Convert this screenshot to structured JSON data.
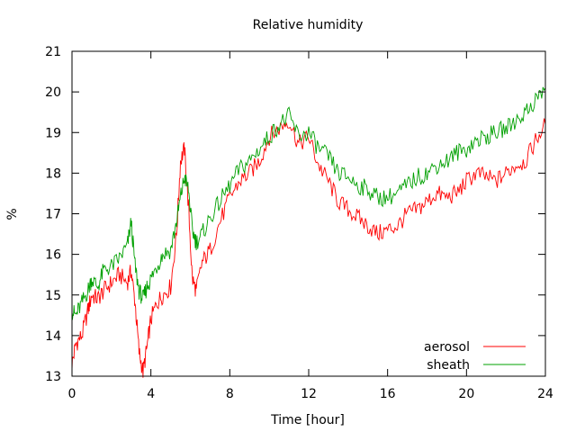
{
  "chart_data": {
    "type": "line",
    "title": "Relative humidity",
    "xlabel": "Time [hour]",
    "ylabel": "%",
    "xlim": [
      0,
      24
    ],
    "ylim": [
      13,
      21
    ],
    "xticks": [
      0,
      4,
      8,
      12,
      16,
      20,
      24
    ],
    "yticks": [
      13,
      14,
      15,
      16,
      17,
      18,
      19,
      20,
      21
    ],
    "grid": false,
    "legend": {
      "position": "bottom-right"
    },
    "series": [
      {
        "name": "aerosol",
        "color": "#ff0000",
        "x": [
          0.0,
          0.2,
          0.5,
          0.8,
          1.0,
          1.3,
          1.6,
          2.0,
          2.4,
          2.8,
          3.0,
          3.2,
          3.4,
          3.6,
          3.8,
          4.0,
          4.3,
          4.6,
          5.0,
          5.3,
          5.5,
          5.7,
          5.9,
          6.1,
          6.3,
          6.6,
          7.0,
          7.5,
          8.0,
          8.5,
          9.0,
          9.5,
          10.0,
          10.5,
          11.0,
          11.5,
          12.0,
          12.5,
          13.0,
          13.5,
          14.0,
          14.5,
          15.0,
          15.5,
          16.0,
          16.5,
          17.0,
          17.5,
          18.0,
          18.5,
          19.0,
          19.5,
          20.0,
          20.5,
          21.0,
          21.5,
          22.0,
          22.5,
          23.0,
          23.5,
          24.0
        ],
        "values": [
          13.3,
          13.8,
          14.0,
          14.6,
          15.0,
          14.9,
          15.1,
          15.3,
          15.5,
          15.3,
          15.6,
          14.8,
          13.6,
          13.1,
          13.7,
          14.4,
          14.8,
          15.0,
          15.2,
          16.5,
          18.3,
          18.6,
          17.2,
          15.4,
          15.1,
          15.8,
          16.1,
          16.8,
          17.4,
          17.8,
          18.0,
          18.3,
          18.9,
          19.1,
          19.3,
          18.7,
          18.9,
          18.2,
          17.8,
          17.3,
          17.1,
          16.9,
          16.7,
          16.5,
          16.6,
          16.7,
          17.0,
          17.1,
          17.3,
          17.5,
          17.4,
          17.5,
          17.8,
          18.0,
          17.9,
          17.8,
          18.0,
          18.2,
          18.3,
          18.8,
          19.2
        ]
      },
      {
        "name": "sheath",
        "color": "#00a000",
        "x": [
          0.0,
          0.2,
          0.5,
          0.8,
          1.0,
          1.3,
          1.6,
          2.0,
          2.4,
          2.8,
          3.0,
          3.2,
          3.4,
          3.6,
          3.8,
          4.0,
          4.3,
          4.6,
          5.0,
          5.3,
          5.5,
          5.7,
          5.9,
          6.1,
          6.3,
          6.6,
          7.0,
          7.5,
          8.0,
          8.5,
          9.0,
          9.5,
          10.0,
          10.5,
          11.0,
          11.5,
          12.0,
          12.5,
          13.0,
          13.5,
          14.0,
          14.5,
          15.0,
          15.5,
          16.0,
          16.5,
          17.0,
          17.5,
          18.0,
          18.5,
          19.0,
          19.5,
          20.0,
          20.5,
          21.0,
          21.5,
          22.0,
          22.5,
          23.0,
          23.5,
          24.0
        ],
        "values": [
          14.6,
          14.5,
          14.8,
          15.1,
          15.4,
          15.2,
          15.6,
          15.7,
          15.9,
          16.2,
          16.8,
          15.7,
          15.1,
          14.9,
          15.2,
          15.4,
          15.7,
          16.0,
          16.1,
          16.8,
          17.4,
          17.9,
          17.6,
          16.6,
          16.3,
          16.5,
          16.9,
          17.3,
          17.7,
          18.1,
          18.3,
          18.6,
          18.9,
          19.2,
          19.4,
          18.9,
          19.0,
          18.6,
          18.4,
          18.0,
          17.9,
          17.7,
          17.6,
          17.4,
          17.4,
          17.5,
          17.7,
          17.9,
          18.0,
          18.2,
          18.3,
          18.5,
          18.6,
          18.8,
          18.9,
          19.0,
          19.1,
          19.3,
          19.5,
          19.8,
          20.1
        ]
      }
    ]
  }
}
